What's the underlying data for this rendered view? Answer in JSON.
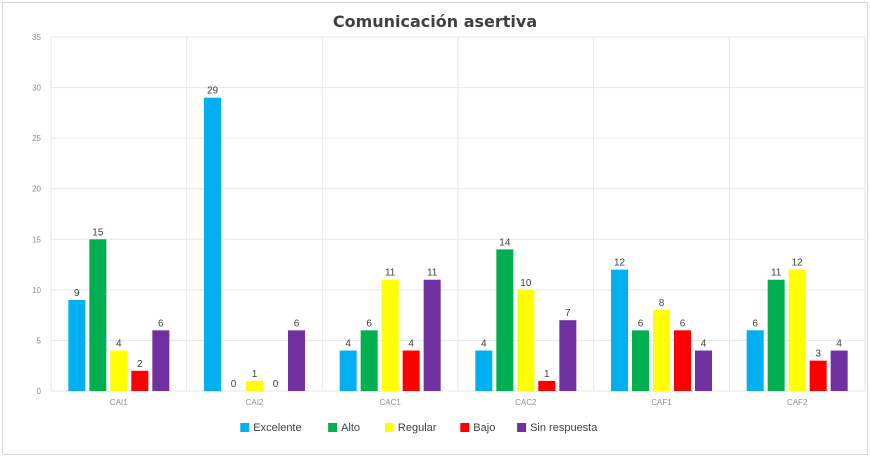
{
  "chart_data": {
    "type": "bar",
    "title": "Comunicación asertiva",
    "xlabel": "",
    "ylabel": "",
    "ylim": [
      0,
      35
    ],
    "yticks": [
      0,
      5,
      10,
      15,
      20,
      25,
      30,
      35
    ],
    "categories": [
      "CAI1",
      "CAI2",
      "CAC1",
      "CAC2",
      "CAF1",
      "CAF2"
    ],
    "series": [
      {
        "name": "Excelente",
        "color": "#00b0f0",
        "values": [
          9,
          29,
          4,
          4,
          12,
          6
        ]
      },
      {
        "name": "Alto",
        "color": "#00b050",
        "values": [
          15,
          0,
          6,
          14,
          6,
          11
        ]
      },
      {
        "name": "Regular",
        "color": "#ffff00",
        "values": [
          4,
          1,
          11,
          10,
          8,
          12
        ]
      },
      {
        "name": "Bajo",
        "color": "#ff0000",
        "values": [
          2,
          0,
          4,
          1,
          6,
          3
        ]
      },
      {
        "name": "Sin respuesta",
        "color": "#7030a0",
        "values": [
          6,
          6,
          11,
          7,
          4,
          4
        ]
      }
    ],
    "grid": true,
    "legend_position": "bottom"
  }
}
